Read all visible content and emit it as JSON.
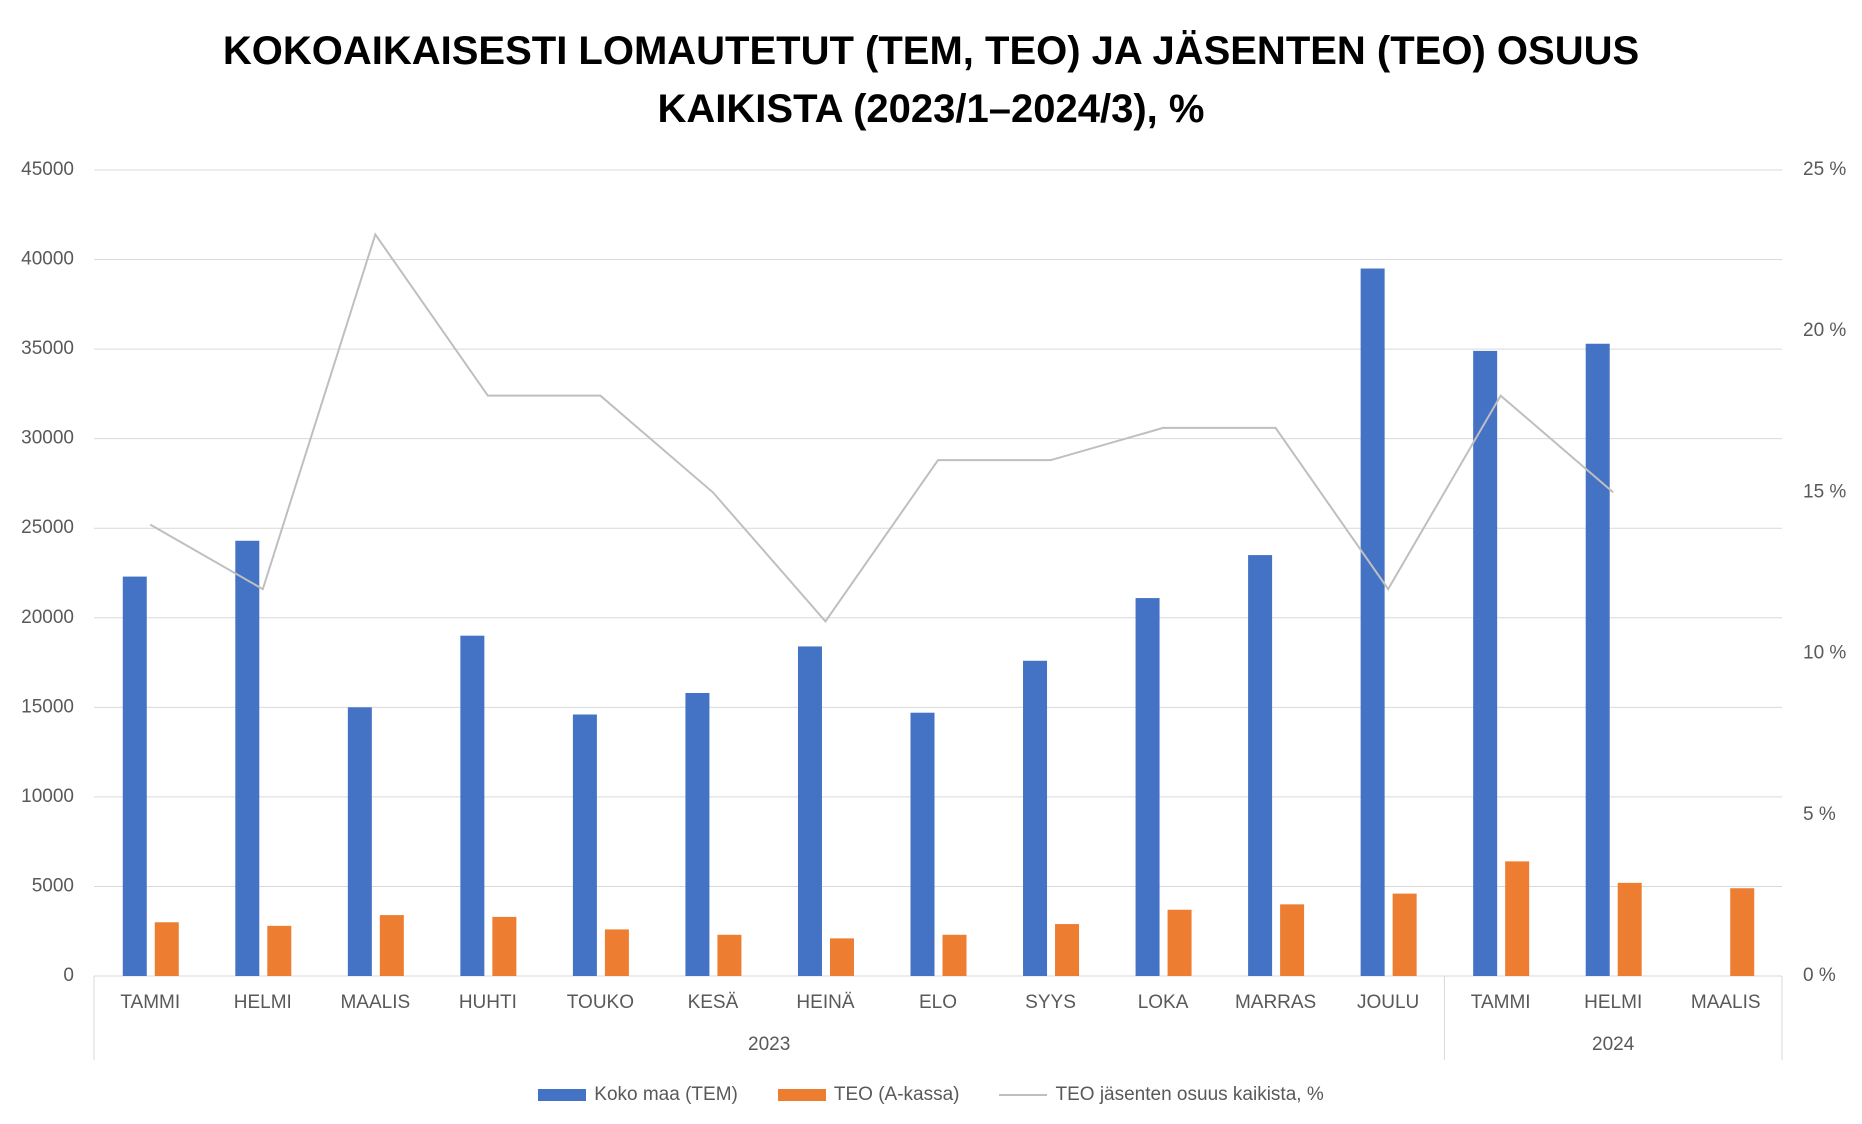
{
  "chart_data": {
    "type": "bar",
    "title": "KOKOAIKAISESTI LOMAUTETUT (TEM, TEO) JA JÄSENTEN (TEO) OSUUS KAIKISTA (2023/1–2024/3), %",
    "categories": [
      "TAMMI",
      "HELMI",
      "MAALIS",
      "HUHTI",
      "TOUKO",
      "KESÄ",
      "HEINÄ",
      "ELO",
      "SYYS",
      "LOKA",
      "MARRAS",
      "JOULU",
      "TAMMI",
      "HELMI",
      "MAALIS"
    ],
    "groups": [
      {
        "name": "2023",
        "count": 12
      },
      {
        "name": "2024",
        "count": 3
      }
    ],
    "series": [
      {
        "name": "Koko maa (TEM)",
        "type": "bar",
        "color": "#4472c4",
        "values": [
          22300,
          24300,
          15000,
          19000,
          14600,
          15800,
          18400,
          14700,
          17600,
          21100,
          23500,
          39500,
          34900,
          35300,
          null
        ]
      },
      {
        "name": "TEO (A-kassa)",
        "type": "bar",
        "color": "#ed7d31",
        "values": [
          3000,
          2800,
          3400,
          3300,
          2600,
          2300,
          2100,
          2300,
          2900,
          3700,
          4000,
          4600,
          6400,
          5200,
          4900
        ]
      },
      {
        "name": "TEO jäsenten osuus kaikista, %",
        "type": "line",
        "axis": "y2",
        "color": "#bfbfbf",
        "values": [
          14,
          12,
          23,
          18,
          18,
          15,
          11,
          16,
          16,
          17,
          17,
          12,
          18,
          15,
          null
        ]
      }
    ],
    "ylim": [
      0,
      45000
    ],
    "yticks": [
      0,
      5000,
      10000,
      15000,
      20000,
      25000,
      30000,
      35000,
      40000,
      45000
    ],
    "y2lim": [
      0,
      25
    ],
    "y2ticks": [
      {
        "value": 0,
        "label": "0 %"
      },
      {
        "value": 5,
        "label": "5 %"
      },
      {
        "value": 10,
        "label": "10 %"
      },
      {
        "value": 15,
        "label": "15 %"
      },
      {
        "value": 20,
        "label": "20 %"
      },
      {
        "value": 25,
        "label": "25 %"
      }
    ],
    "grid": true,
    "legend": "bottom"
  }
}
